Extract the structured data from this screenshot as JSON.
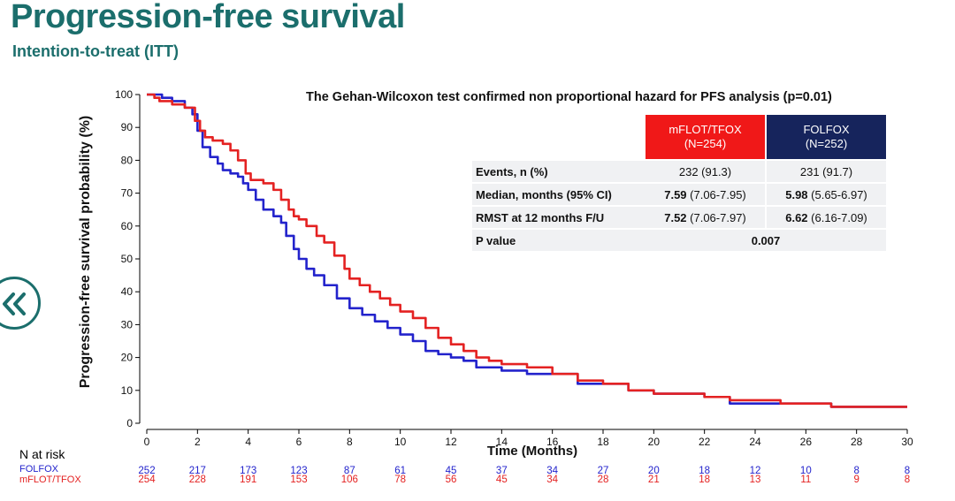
{
  "title": "Progression-free survival",
  "subtitle": "Intention-to-treat (ITT)",
  "colors": {
    "title": "#1b6e6c",
    "mflot": "#e42222",
    "folfox": "#2323cc",
    "mflot_header": "#f01818",
    "folfox_header": "#16245c"
  },
  "back_nav": {
    "icon": "double-chevron-left-icon"
  },
  "info_header": "The Gehan-Wilcoxon test confirmed non proportional hazard for PFS analysis (p=0.01)",
  "table": {
    "arms": [
      {
        "name": "mFLOT/TFOX",
        "n": "(N=254)"
      },
      {
        "name": "FOLFOX",
        "n": "(N=252)"
      }
    ],
    "rows": [
      {
        "label": "Events, n (%)",
        "a_bold": "",
        "a_rest": "232 (91.3)",
        "b_bold": "",
        "b_rest": "231 (91.7)"
      },
      {
        "label": "Median, months (95% CI)",
        "a_bold": "7.59",
        "a_rest": " (7.06-7.95)",
        "b_bold": "5.98",
        "b_rest": " (5.65-6.97)"
      },
      {
        "label": "RMST at 12 months F/U",
        "a_bold": "7.52",
        "a_rest": " (7.06-7.97)",
        "b_bold": "6.62",
        "b_rest": " (6.16-7.09)"
      }
    ],
    "pvalue_label": "P value",
    "pvalue": "0.007"
  },
  "risk_table": {
    "heading": "N at risk",
    "folfox_label": "FOLFOX",
    "mflot_label": "mFLOT/TFOX",
    "months": [
      0,
      2,
      4,
      6,
      8,
      10,
      12,
      14,
      16,
      18,
      20,
      22,
      24,
      26,
      28,
      30
    ],
    "folfox": [
      252,
      217,
      173,
      123,
      87,
      61,
      45,
      37,
      34,
      27,
      20,
      18,
      12,
      10,
      8,
      8
    ],
    "mflot": [
      254,
      228,
      191,
      153,
      106,
      78,
      56,
      45,
      34,
      28,
      21,
      18,
      13,
      11,
      9,
      8
    ]
  },
  "chart_data": {
    "type": "line",
    "xlabel": "Time (Months)",
    "ylabel": "Progression-free survival probability (%)",
    "xlim": [
      0,
      30
    ],
    "ylim": [
      0,
      100
    ],
    "xticks": [
      0,
      2,
      4,
      6,
      8,
      10,
      12,
      14,
      16,
      18,
      20,
      22,
      24,
      26,
      28,
      30
    ],
    "yticks": [
      0,
      10,
      20,
      30,
      40,
      50,
      60,
      70,
      80,
      90,
      100
    ],
    "grid": false,
    "series": [
      {
        "name": "mFLOT/TFOX",
        "color": "#e42222",
        "x": [
          0,
          0.3,
          0.5,
          1.0,
          1.5,
          1.9,
          2.1,
          2.3,
          2.6,
          3.0,
          3.3,
          3.6,
          3.9,
          4.1,
          4.3,
          4.6,
          5.0,
          5.3,
          5.6,
          5.8,
          6.0,
          6.3,
          6.7,
          7.0,
          7.4,
          7.8,
          8.0,
          8.4,
          8.8,
          9.2,
          9.6,
          10.0,
          10.5,
          11.0,
          11.5,
          12.0,
          12.5,
          13.0,
          13.5,
          14.0,
          15.0,
          16.0,
          17.0,
          18.0,
          19.0,
          20.0,
          21.0,
          22.0,
          23.0,
          24.0,
          25.0,
          26.0,
          27.0,
          28.0,
          29.0,
          30.0
        ],
        "y": [
          100,
          99,
          98,
          97,
          96,
          92,
          89,
          87,
          86,
          85,
          83,
          80,
          76,
          74,
          74,
          73,
          71,
          68,
          65,
          63,
          62,
          60,
          57,
          55,
          51,
          47,
          44,
          42,
          40,
          38,
          36,
          34,
          32,
          29,
          26,
          24,
          22,
          20,
          19,
          18,
          17,
          15,
          13,
          12,
          10,
          9,
          9,
          8,
          7,
          7,
          6,
          6,
          5,
          5,
          5,
          5
        ]
      },
      {
        "name": "FOLFOX",
        "color": "#2323cc",
        "x": [
          0,
          0.3,
          0.6,
          1.0,
          1.5,
          1.8,
          2.0,
          2.2,
          2.5,
          2.8,
          3.0,
          3.3,
          3.6,
          3.8,
          4.0,
          4.3,
          4.6,
          5.0,
          5.3,
          5.5,
          5.8,
          6.0,
          6.3,
          6.6,
          7.0,
          7.5,
          8.0,
          8.5,
          9.0,
          9.5,
          10.0,
          10.5,
          11.0,
          11.5,
          12.0,
          12.5,
          13.0,
          14.0,
          15.0,
          16.0,
          17.0,
          18.0,
          19.0,
          20.0,
          21.0,
          22.0,
          23.0,
          24.0,
          25.0,
          26.0,
          27.0,
          28.0,
          29.0,
          30.0
        ],
        "y": [
          100,
          100,
          99,
          98,
          96,
          94,
          89,
          84,
          81,
          79,
          77,
          76,
          75,
          73,
          71,
          68,
          65,
          63,
          61,
          57,
          53,
          50,
          47,
          45,
          42,
          38,
          35,
          33,
          31,
          29,
          27,
          25,
          22,
          21,
          20,
          19,
          17,
          16,
          15,
          15,
          12,
          12,
          10,
          9,
          9,
          8,
          6,
          6,
          6,
          6,
          5,
          5,
          5,
          5
        ]
      }
    ]
  }
}
